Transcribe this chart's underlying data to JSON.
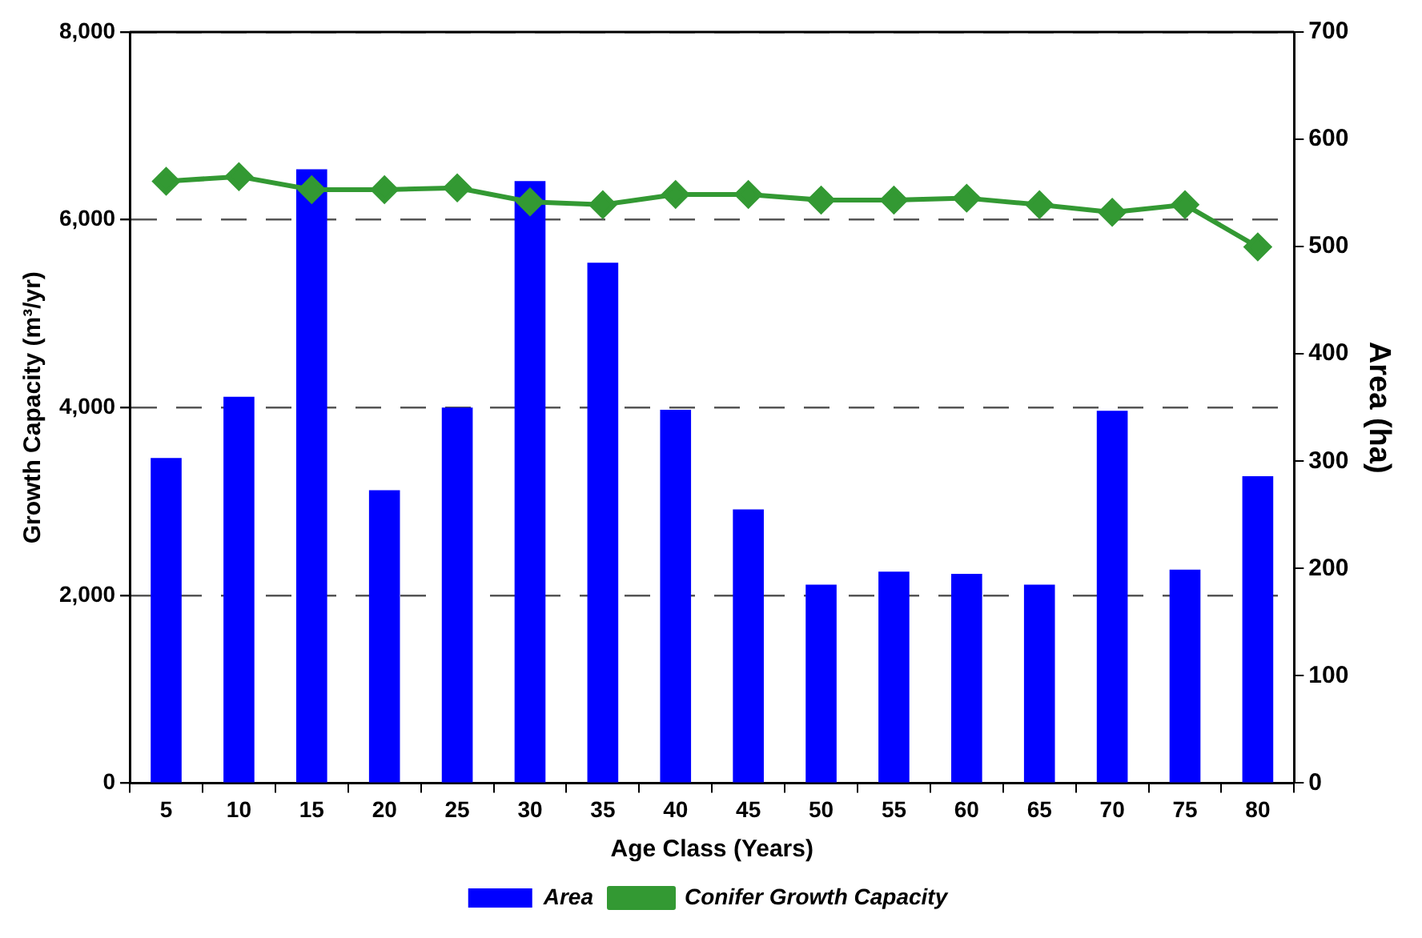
{
  "chart_data": {
    "type": "bar",
    "xlabel": "Age Class (Years)",
    "ylabel": "Growth Capacity (m³/yr)",
    "y2label": "Area (ha)",
    "categories": [
      "5",
      "10",
      "15",
      "20",
      "25",
      "30",
      "35",
      "40",
      "45",
      "50",
      "55",
      "60",
      "65",
      "70",
      "75",
      "80"
    ],
    "series": [
      {
        "name": "Area",
        "axis": "y2",
        "color": "#0000ff",
        "values": [
          303,
          360,
          572,
          273,
          350,
          561,
          485,
          348,
          255,
          185,
          197,
          195,
          185,
          347,
          199,
          286
        ]
      },
      {
        "name": "Conifer Growth Capacity",
        "type": "line",
        "color": "#339933",
        "marker": "diamond",
        "values": [
          6410,
          6460,
          6320,
          6320,
          6340,
          6190,
          6160,
          6270,
          6270,
          6210,
          6210,
          6230,
          6160,
          6080,
          6160,
          5710
        ]
      }
    ],
    "ylim": [
      0,
      8000
    ],
    "yticks": [
      {
        "value": 0,
        "label": "0"
      },
      {
        "value": 2000,
        "label": "2,000"
      },
      {
        "value": 4000,
        "label": "4,000"
      },
      {
        "value": 6000,
        "label": "6,000"
      },
      {
        "value": 8000,
        "label": "8,000"
      }
    ],
    "y2lim": [
      0,
      700
    ],
    "y2ticks": [
      0,
      100,
      200,
      300,
      400,
      500,
      600,
      700
    ],
    "grid": "y",
    "legend": "bottom"
  }
}
